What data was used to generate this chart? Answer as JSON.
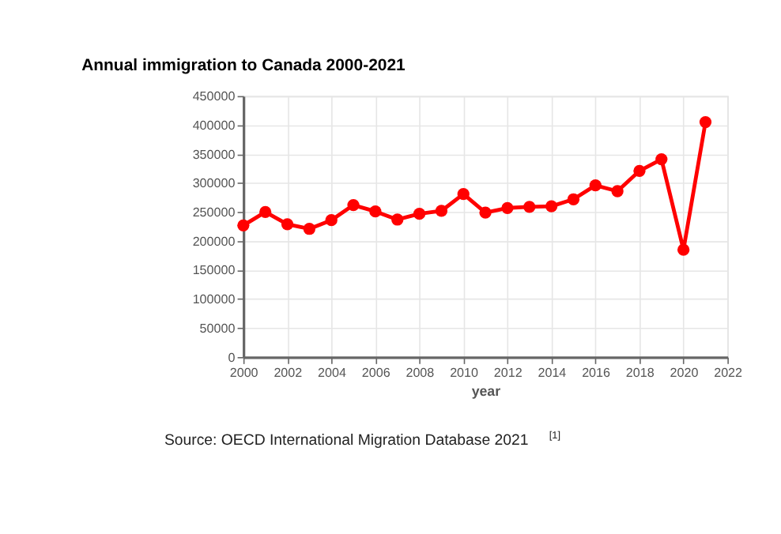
{
  "chart_data": {
    "type": "line",
    "title": "Annual immigration to Canada 2000-2021",
    "xlabel": "year",
    "x": [
      2000,
      2001,
      2002,
      2003,
      2004,
      2005,
      2006,
      2007,
      2008,
      2009,
      2010,
      2011,
      2012,
      2013,
      2014,
      2015,
      2016,
      2017,
      2018,
      2019,
      2020,
      2021
    ],
    "series": [
      {
        "color": "#ff0000",
        "values": [
          227000,
          250000,
          229000,
          221000,
          236000,
          262000,
          251000,
          237000,
          247000,
          252000,
          281000,
          249000,
          257000,
          259000,
          260000,
          272000,
          296000,
          286000,
          321000,
          341000,
          185000,
          405000
        ]
      }
    ],
    "xlim": [
      2000,
      2022
    ],
    "xticks": [
      2000,
      2002,
      2004,
      2006,
      2008,
      2010,
      2012,
      2014,
      2016,
      2018,
      2020,
      2022
    ],
    "ylim": [
      0,
      450000
    ],
    "yticks": [
      0,
      50000,
      100000,
      150000,
      200000,
      250000,
      300000,
      350000,
      400000,
      450000
    ],
    "grid": true,
    "marker": "circle",
    "line_style": "solid",
    "legend": false,
    "annotations": [
      "Source: OECD International Migration Database 2021$^{[1]}$"
    ]
  }
}
